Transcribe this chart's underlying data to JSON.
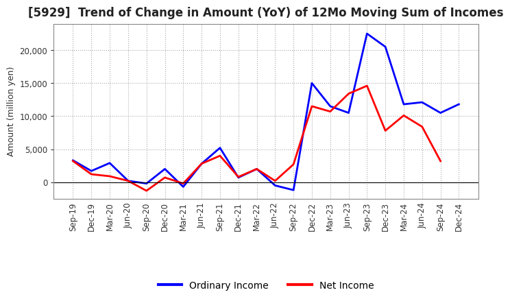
{
  "title": "[5929]  Trend of Change in Amount (YoY) of 12Mo Moving Sum of Incomes",
  "ylabel": "Amount (million yen)",
  "x_labels": [
    "Sep-19",
    "Dec-19",
    "Mar-20",
    "Jun-20",
    "Sep-20",
    "Dec-20",
    "Mar-21",
    "Jun-21",
    "Sep-21",
    "Dec-21",
    "Mar-22",
    "Jun-22",
    "Sep-22",
    "Dec-22",
    "Mar-23",
    "Jun-23",
    "Sep-23",
    "Dec-23",
    "Mar-24",
    "Jun-24",
    "Sep-24",
    "Dec-24"
  ],
  "ordinary_income": [
    3300,
    1700,
    2900,
    200,
    -200,
    2000,
    -700,
    2800,
    5200,
    700,
    2000,
    -500,
    -1200,
    15000,
    11500,
    10500,
    22500,
    20500,
    11800,
    12100,
    10500,
    11800
  ],
  "net_income": [
    3200,
    1200,
    900,
    200,
    -1300,
    700,
    -200,
    2800,
    4000,
    800,
    2000,
    200,
    2700,
    11500,
    10700,
    13400,
    14600,
    7800,
    10100,
    8400,
    3200,
    null
  ],
  "ordinary_color": "#0000ff",
  "net_color": "#ff0000",
  "ylim_min": -2500,
  "ylim_max": 24000,
  "yticks": [
    0,
    5000,
    10000,
    15000,
    20000
  ],
  "bg_color": "#ffffff",
  "plot_bg_color": "#ffffff",
  "grid_color": "#aaaaaa",
  "legend_ordinary": "Ordinary Income",
  "legend_net": "Net Income",
  "title_fontsize": 12,
  "axis_fontsize": 9,
  "tick_fontsize": 8.5
}
